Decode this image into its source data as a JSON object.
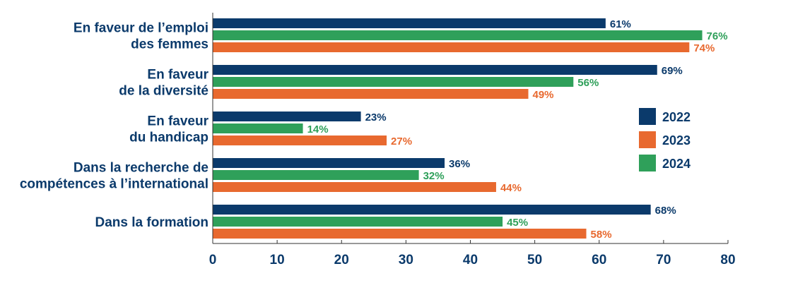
{
  "chart_data": {
    "type": "bar",
    "orientation": "horizontal",
    "categories": [
      [
        "En faveur de l’emploi",
        "des femmes"
      ],
      [
        "En faveur",
        "de la diversité"
      ],
      [
        "En faveur",
        "du handicap"
      ],
      [
        "Dans la recherche de",
        "compétences à l’international"
      ],
      [
        "Dans la formation"
      ]
    ],
    "series": [
      {
        "name": "2022",
        "values": [
          61,
          69,
          23,
          36,
          68
        ],
        "color": "#0b3a6b"
      },
      {
        "name": "2024",
        "values": [
          76,
          56,
          14,
          32,
          45
        ],
        "color": "#2fa05a"
      },
      {
        "name": "2023",
        "values": [
          74,
          49,
          27,
          44,
          58
        ],
        "color": "#e8692f"
      }
    ],
    "legend": {
      "placement": "right",
      "items": [
        {
          "name": "2022",
          "color": "#0b3a6b"
        },
        {
          "name": "2023",
          "color": "#e8692f"
        },
        {
          "name": "2024",
          "color": "#2fa05a"
        }
      ]
    },
    "value_suffix": "%",
    "xlim": [
      0,
      80
    ],
    "xticks": [
      0,
      10,
      20,
      30,
      40,
      50,
      60,
      70,
      80
    ],
    "grid": false,
    "text_color": "#0b3a6b"
  }
}
